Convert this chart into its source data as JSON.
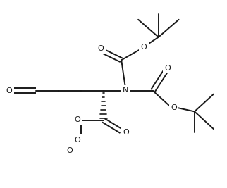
{
  "bg": "#ffffff",
  "lc": "#1a1a1a",
  "lw": 1.4,
  "fs": 8.0,
  "xlim": [
    0,
    10
  ],
  "ylim": [
    0,
    8.5
  ],
  "figw": 3.22,
  "figh": 2.67,
  "dpi": 100
}
